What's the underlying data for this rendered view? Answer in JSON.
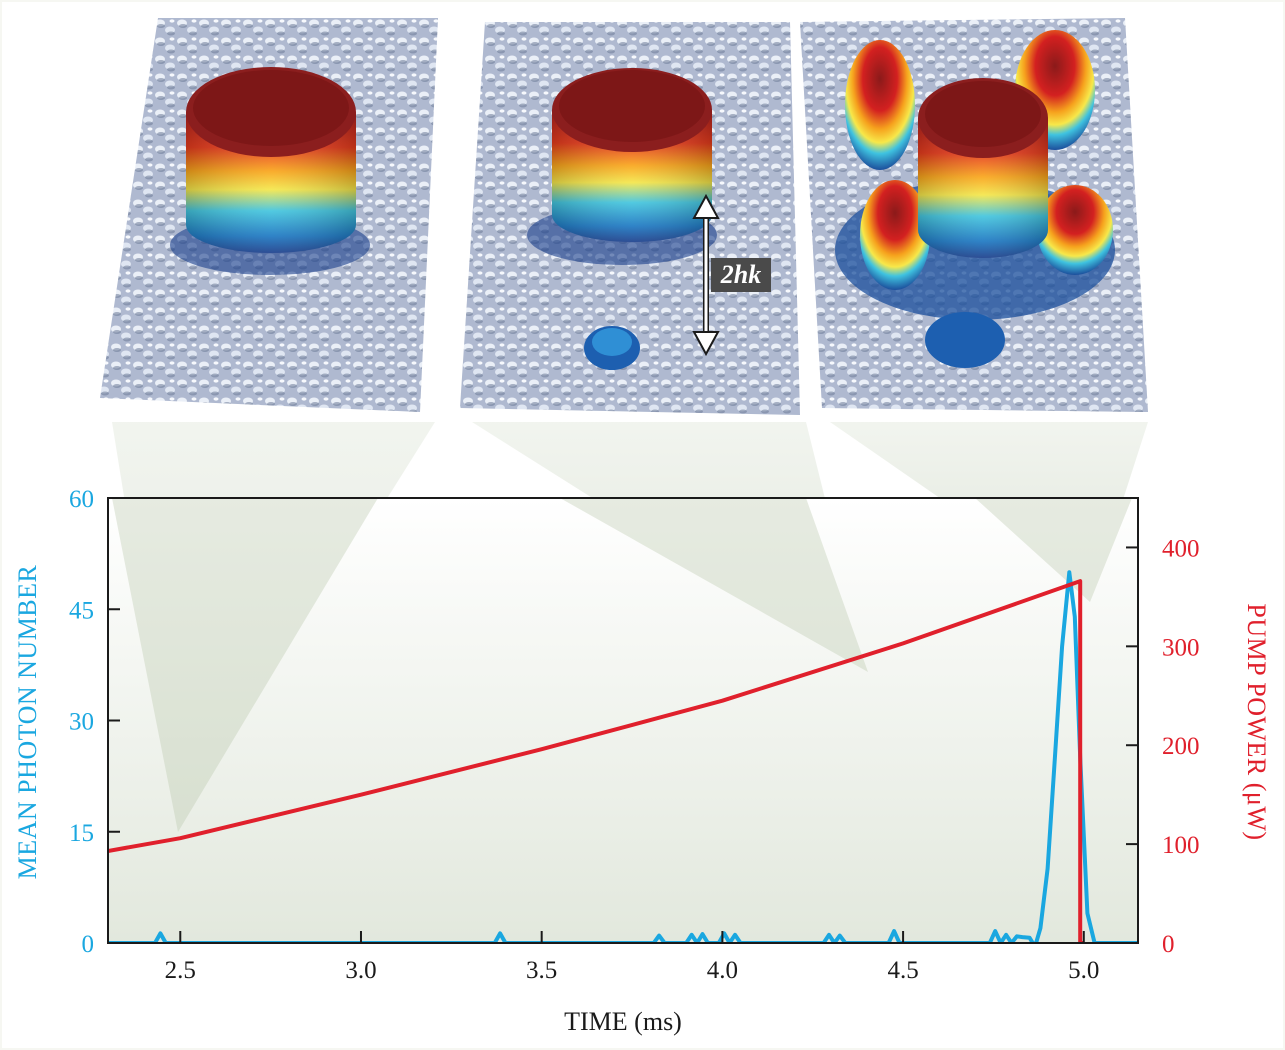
{
  "chart_data": {
    "type": "line",
    "xlabel": "TIME (ms)",
    "ylabel_left": "MEAN PHOTON NUMBER",
    "ylabel_right": "PUMP POWER (μW)",
    "xlim": [
      2.3,
      5.15
    ],
    "ylim_left": [
      0,
      60
    ],
    "ylim_right": [
      0,
      450
    ],
    "x_ticks": [
      "2.5",
      "3.0",
      "3.5",
      "4.0",
      "4.5",
      "5.0"
    ],
    "x_tick_values": [
      2.5,
      3.0,
      3.5,
      4.0,
      4.5,
      5.0
    ],
    "y_left_ticks": [
      "0",
      "15",
      "30",
      "45",
      "60"
    ],
    "y_left_tick_values": [
      0,
      15,
      30,
      45,
      60
    ],
    "y_right_ticks": [
      "0",
      "100",
      "200",
      "300",
      "400"
    ],
    "y_right_tick_values": [
      0,
      100,
      200,
      300,
      400
    ],
    "grid": false,
    "series": [
      {
        "name": "MEAN PHOTON NUMBER",
        "axis": "left",
        "color": "#1aa7e0",
        "x": [
          2.3,
          2.43,
          2.445,
          2.46,
          3.37,
          3.385,
          3.4,
          3.81,
          3.825,
          3.84,
          3.9,
          3.915,
          3.93,
          3.945,
          3.96,
          3.99,
          4.005,
          4.02,
          4.035,
          4.05,
          4.28,
          4.295,
          4.31,
          4.325,
          4.34,
          4.46,
          4.475,
          4.49,
          4.74,
          4.755,
          4.77,
          4.785,
          4.8,
          4.815,
          4.83,
          4.85,
          4.865,
          4.88,
          4.9,
          4.92,
          4.94,
          4.96,
          4.975,
          4.99,
          5.01,
          5.03,
          5.15
        ],
        "y": [
          0,
          0,
          1.3,
          0,
          0,
          1.3,
          0,
          0,
          1.0,
          0,
          0,
          1.1,
          0,
          1.2,
          0,
          0,
          1.3,
          0,
          1.1,
          0,
          0,
          1.1,
          0,
          1.0,
          0,
          0,
          1.6,
          0,
          0,
          1.6,
          0,
          1.1,
          0,
          0.9,
          0.8,
          0.7,
          -0.5,
          2,
          10,
          25,
          40,
          50,
          44,
          25,
          4,
          0,
          0
        ]
      },
      {
        "name": "PUMP POWER",
        "axis": "right",
        "color": "#e0202c",
        "x": [
          2.3,
          2.5,
          3.0,
          3.5,
          4.0,
          4.5,
          4.99,
          4.99,
          5.0
        ],
        "y": [
          93,
          106,
          150,
          196,
          245,
          303,
          366,
          0,
          0
        ]
      }
    ]
  },
  "panel_label": "2hk"
}
